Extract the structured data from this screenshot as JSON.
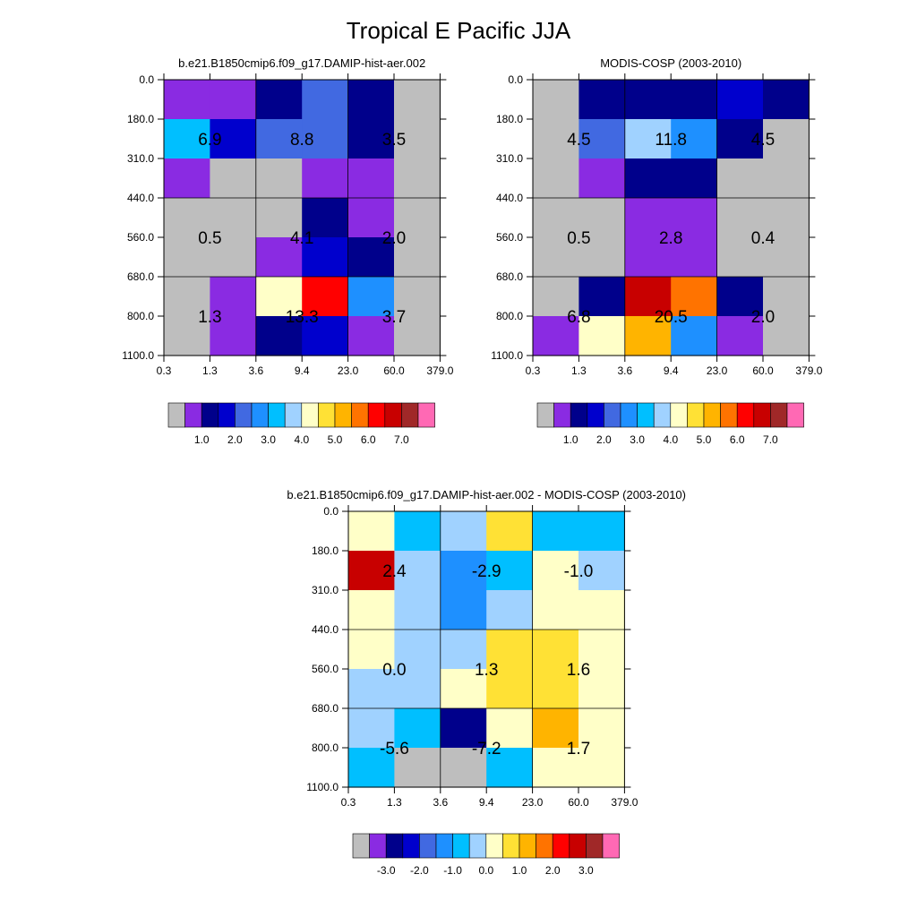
{
  "figure_title": "Tropical E Pacific JJA",
  "palette": [
    "#bebebe",
    "#8a2be2",
    "#00008b",
    "#0000cd",
    "#4169e1",
    "#1e90ff",
    "#00bfff",
    "#a0d2ff",
    "#ffffc8",
    "#ffe135",
    "#ffb400",
    "#ff7300",
    "#ff0000",
    "#c80000",
    "#a02828",
    "#ff69b4"
  ],
  "chart_data": [
    {
      "type": "heatmap",
      "title": "b.e21.B1850cmip6.f09_g17.DAMIP-hist-aer.002",
      "x_tick_labels": [
        "0.3",
        "1.3",
        "3.6",
        "9.4",
        "23.0",
        "60.0",
        "379.0"
      ],
      "y_tick_labels": [
        "0.0",
        "180.0",
        "310.0",
        "440.0",
        "560.0",
        "680.0",
        "800.0",
        "1100.0"
      ],
      "cell_colors": [
        [
          "#8a2be2",
          "#8a2be2",
          "#00008b",
          "#4169e1",
          "#00008b",
          "#bebebe"
        ],
        [
          "#00bfff",
          "#0000cd",
          "#4169e1",
          "#4169e1",
          "#00008b",
          "#bebebe"
        ],
        [
          "#8a2be2",
          "#bebebe",
          "#bebebe",
          "#8a2be2",
          "#8a2be2",
          "#bebebe"
        ],
        [
          "#bebebe",
          "#bebebe",
          "#bebebe",
          "#00008b",
          "#8a2be2",
          "#bebebe"
        ],
        [
          "#bebebe",
          "#bebebe",
          "#8a2be2",
          "#0000cd",
          "#00008b",
          "#bebebe"
        ],
        [
          "#bebebe",
          "#8a2be2",
          "#ffffc8",
          "#ff0000",
          "#1e90ff",
          "#bebebe"
        ],
        [
          "#bebebe",
          "#8a2be2",
          "#00008b",
          "#0000cd",
          "#8a2be2",
          "#bebebe"
        ]
      ],
      "block_values": [
        [
          "6.9",
          "8.8",
          "3.5"
        ],
        [
          "0.5",
          "4.1",
          "2.0"
        ],
        [
          "1.3",
          "13.3",
          "3.7"
        ]
      ],
      "colorbar_labels": [
        "1.0",
        "2.0",
        "3.0",
        "4.0",
        "5.0",
        "6.0",
        "7.0"
      ]
    },
    {
      "type": "heatmap",
      "title": "MODIS-COSP (2003-2010)",
      "x_tick_labels": [
        "0.3",
        "1.3",
        "3.6",
        "9.4",
        "23.0",
        "60.0",
        "379.0"
      ],
      "y_tick_labels": [
        "0.0",
        "180.0",
        "310.0",
        "440.0",
        "560.0",
        "680.0",
        "800.0",
        "1100.0"
      ],
      "cell_colors": [
        [
          "#bebebe",
          "#00008b",
          "#00008b",
          "#00008b",
          "#0000cd",
          "#00008b"
        ],
        [
          "#bebebe",
          "#4169e1",
          "#a0d2ff",
          "#1e90ff",
          "#00008b",
          "#bebebe"
        ],
        [
          "#bebebe",
          "#8a2be2",
          "#00008b",
          "#00008b",
          "#bebebe",
          "#bebebe"
        ],
        [
          "#bebebe",
          "#bebebe",
          "#8a2be2",
          "#8a2be2",
          "#bebebe",
          "#bebebe"
        ],
        [
          "#bebebe",
          "#bebebe",
          "#8a2be2",
          "#8a2be2",
          "#bebebe",
          "#bebebe"
        ],
        [
          "#bebebe",
          "#00008b",
          "#c80000",
          "#ff7300",
          "#00008b",
          "#bebebe"
        ],
        [
          "#8a2be2",
          "#ffffc8",
          "#ffb400",
          "#1e90ff",
          "#8a2be2",
          "#bebebe"
        ]
      ],
      "block_values": [
        [
          "4.5",
          "11.8",
          "4.5"
        ],
        [
          "0.5",
          "2.8",
          "0.4"
        ],
        [
          "6.8",
          "20.5",
          "2.0"
        ]
      ],
      "colorbar_labels": [
        "1.0",
        "2.0",
        "3.0",
        "4.0",
        "5.0",
        "6.0",
        "7.0"
      ]
    },
    {
      "type": "heatmap",
      "title": "b.e21.B1850cmip6.f09_g17.DAMIP-hist-aer.002 - MODIS-COSP (2003-2010)",
      "x_tick_labels": [
        "0.3",
        "1.3",
        "3.6",
        "9.4",
        "23.0",
        "60.0",
        "379.0"
      ],
      "y_tick_labels": [
        "0.0",
        "180.0",
        "310.0",
        "440.0",
        "560.0",
        "680.0",
        "800.0",
        "1100.0"
      ],
      "cell_colors": [
        [
          "#ffffc8",
          "#00bfff",
          "#a0d2ff",
          "#ffe135",
          "#00bfff",
          "#00bfff"
        ],
        [
          "#c80000",
          "#a0d2ff",
          "#1e90ff",
          "#00bfff",
          "#ffffc8",
          "#a0d2ff"
        ],
        [
          "#ffffc8",
          "#a0d2ff",
          "#1e90ff",
          "#a0d2ff",
          "#ffffc8",
          "#ffffc8"
        ],
        [
          "#ffffc8",
          "#a0d2ff",
          "#a0d2ff",
          "#ffe135",
          "#ffe135",
          "#ffffc8"
        ],
        [
          "#a0d2ff",
          "#a0d2ff",
          "#ffffc8",
          "#ffe135",
          "#ffe135",
          "#ffffc8"
        ],
        [
          "#a0d2ff",
          "#00bfff",
          "#00008b",
          "#ffffc8",
          "#ffb400",
          "#ffffc8"
        ],
        [
          "#00bfff",
          "#bebebe",
          "#bebebe",
          "#00bfff",
          "#ffffc8",
          "#ffffc8"
        ]
      ],
      "block_values": [
        [
          "2.4",
          "-2.9",
          "-1.0"
        ],
        [
          "0.0",
          "1.3",
          "1.6"
        ],
        [
          "-5.6",
          "-7.2",
          "1.7"
        ]
      ],
      "colorbar_labels": [
        "-3.0",
        "-2.0",
        "-1.0",
        "0.0",
        "1.0",
        "2.0",
        "3.0"
      ]
    }
  ]
}
